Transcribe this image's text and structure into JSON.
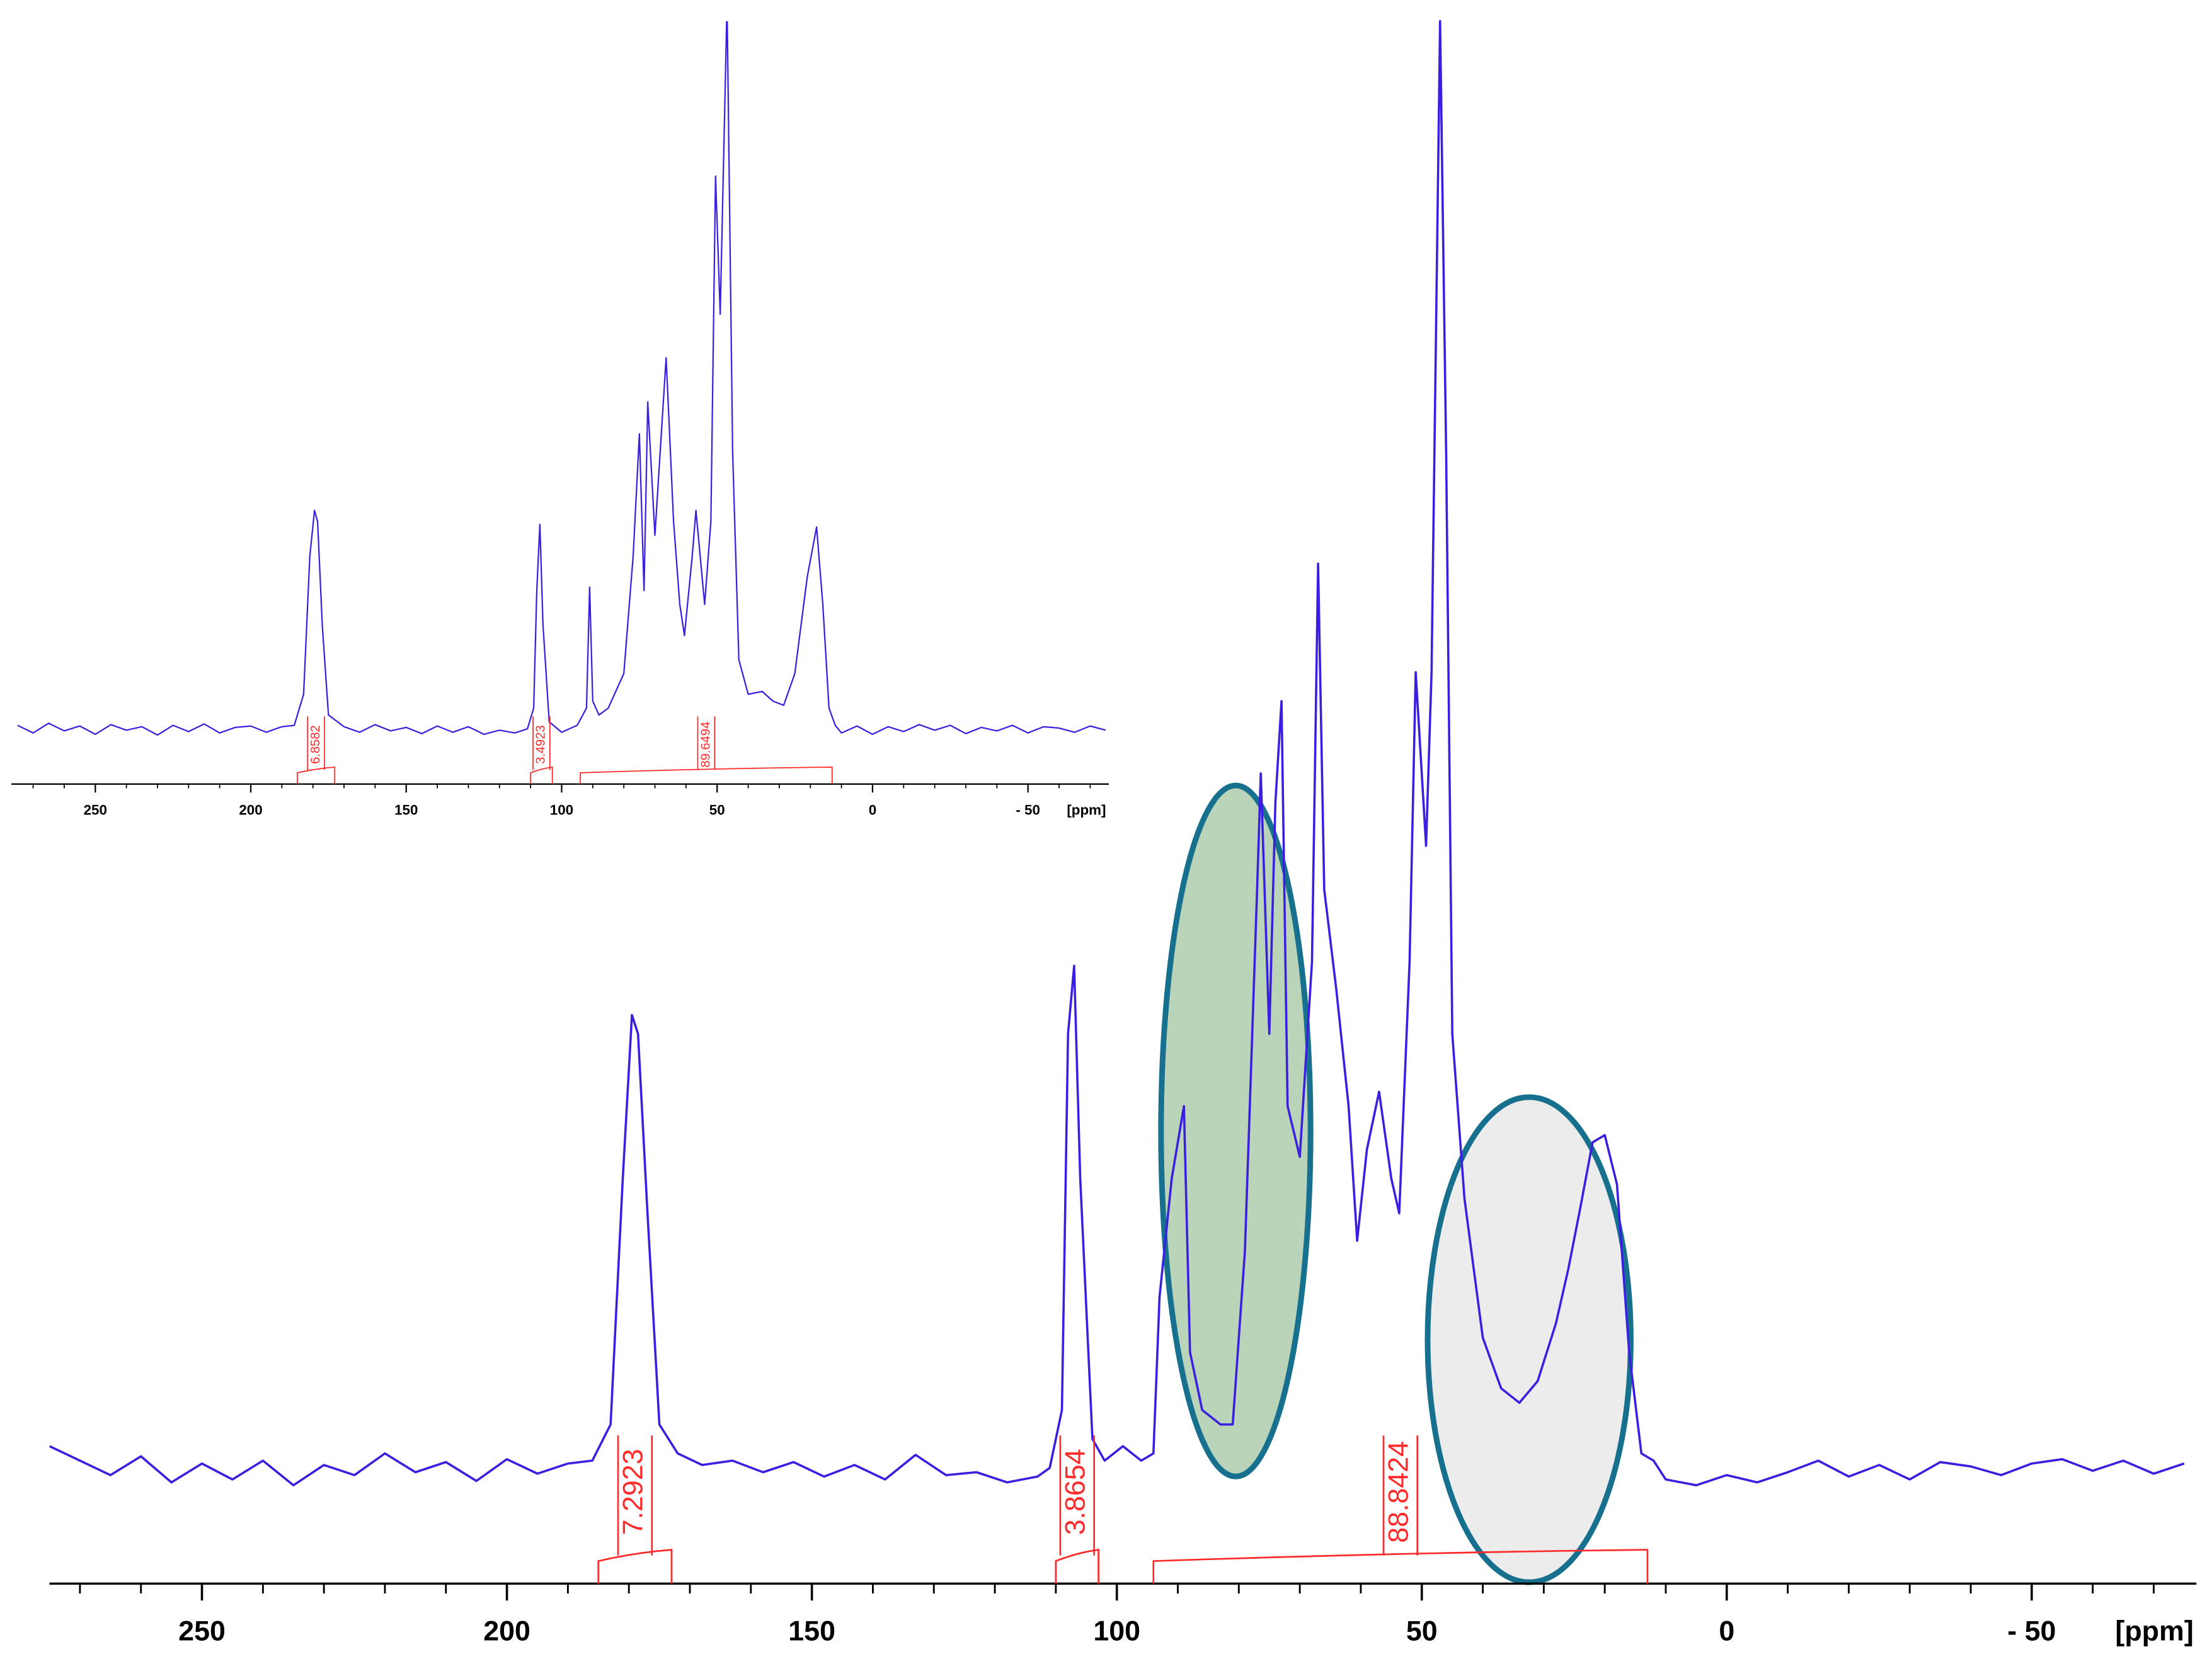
{
  "chart_data": [
    {
      "type": "line",
      "xlabel": "[ppm]",
      "xlim": [
        275,
        -77
      ],
      "ylim": [
        -8,
        100
      ],
      "xticks": [
        250,
        200,
        150,
        100,
        50,
        0,
        {
          "value": -50,
          "label": "- 50"
        }
      ],
      "xminorticks": [
        270,
        260,
        240,
        230,
        220,
        210,
        190,
        180,
        170,
        160,
        140,
        130,
        120,
        110,
        90,
        80,
        70,
        60,
        40,
        30,
        20,
        10,
        -10,
        -20,
        -30,
        -40,
        -60,
        -70
      ],
      "color": "#3a1fe0",
      "x": [
        275,
        270,
        265,
        260,
        255,
        250,
        245,
        240,
        235,
        230,
        225,
        220,
        215,
        210,
        205,
        200,
        195,
        190,
        186,
        183,
        181,
        179.5,
        178.5,
        177,
        175,
        172,
        168,
        163,
        158,
        153,
        148,
        143,
        138,
        133,
        128,
        123,
        118,
        113,
        111,
        109,
        108,
        107,
        106,
        104,
        102,
        99,
        96,
        94,
        93,
        91,
        89,
        88,
        86,
        83,
        81,
        79,
        77,
        76.4,
        75,
        74,
        73,
        72,
        70,
        68,
        67,
        66,
        64,
        62,
        60.6,
        59,
        57,
        55,
        53.7,
        52,
        51,
        49.3,
        48.4,
        47,
        46,
        45,
        43,
        40,
        37,
        34,
        31,
        28,
        26,
        24,
        22,
        20,
        18,
        16,
        14,
        12,
        10,
        5,
        0,
        -5,
        -10,
        -15,
        -20,
        -25,
        -30,
        -35,
        -40,
        -45,
        -50,
        -55,
        -60,
        -65,
        -70,
        -75
      ],
      "values": [
        1.5,
        0.5,
        -0.5,
        0.8,
        -1,
        0.3,
        -0.8,
        0.5,
        -1.2,
        0.2,
        -0.5,
        1,
        -0.3,
        0.4,
        -0.9,
        0.6,
        -0.4,
        0.3,
        0.5,
        3,
        20,
        31.3,
        30,
        18,
        3,
        1,
        0.2,
        0.5,
        -0.3,
        0.4,
        -0.6,
        0.2,
        -0.8,
        0.9,
        -0.5,
        -0.3,
        -1,
        -0.6,
        0,
        4,
        30,
        34.7,
        20,
        2,
        0.5,
        1.5,
        0.5,
        1,
        11.8,
        20,
        25,
        8,
        4,
        3,
        3,
        15,
        40,
        48,
        30,
        46,
        53,
        25,
        21.5,
        35,
        62.5,
        40,
        33,
        25,
        15.7,
        22,
        26,
        20,
        17.6,
        35,
        55,
        43,
        55,
        100,
        70,
        30,
        18.6,
        9,
        5.5,
        4.5,
        6,
        10,
        13.7,
        18,
        22.5,
        23,
        19.6,
        8,
        1,
        0.5,
        -0.8,
        -1.2,
        -0.5,
        -1,
        -0.3,
        0.5,
        -0.6,
        0.2,
        -0.8,
        0.4,
        0.1,
        -0.5,
        0.3,
        0.6,
        -0.2,
        0.5,
        -0.4,
        0.3
      ],
      "integrals": [
        {
          "from": 185,
          "to": 173,
          "value": 7.2923
        },
        {
          "from": 110,
          "to": 103,
          "value": 3.8654
        },
        {
          "from": 94,
          "to": 13,
          "value": 88.8424
        }
      ]
    },
    {
      "type": "line",
      "xlabel": "[ppm]",
      "xlim": [
        277,
        -76
      ],
      "ylim": [
        -8,
        101
      ],
      "xticks": [
        250,
        200,
        150,
        100,
        50,
        0,
        {
          "value": -50,
          "label": "- 50"
        }
      ],
      "xminorticks": [
        270,
        260,
        240,
        230,
        220,
        210,
        190,
        180,
        170,
        160,
        140,
        130,
        120,
        110,
        90,
        80,
        70,
        60,
        40,
        30,
        20,
        10,
        -10,
        -20,
        -30,
        -40,
        -60,
        -70
      ],
      "color": "#3a1fe0",
      "x": [
        275,
        270,
        265,
        260,
        255,
        250,
        245,
        240,
        235,
        230,
        225,
        220,
        215,
        210,
        205,
        200,
        195,
        190,
        186,
        183,
        181,
        179.5,
        178.5,
        177,
        175,
        170,
        165,
        160,
        155,
        150,
        145,
        140,
        135,
        130,
        125,
        120,
        115,
        111,
        109,
        108,
        107,
        106,
        104,
        100,
        95,
        92,
        91,
        90,
        88,
        85,
        80,
        77,
        75,
        73.5,
        72.3,
        70,
        66.4,
        64,
        62,
        60.5,
        58,
        56.8,
        54,
        52,
        50.5,
        49,
        46.8,
        45,
        43,
        40,
        35.5,
        32,
        28.6,
        25,
        21,
        18,
        16,
        14,
        12,
        10,
        5,
        0,
        -5,
        -10,
        -15,
        -20,
        -25,
        -30,
        -35,
        -40,
        -45,
        -50,
        -55,
        -60,
        -65,
        -70,
        -75
      ],
      "values": [
        0.5,
        -0.6,
        0.8,
        -0.3,
        0.4,
        -0.8,
        0.6,
        -0.2,
        0.3,
        -0.9,
        0.5,
        -0.4,
        0.7,
        -0.6,
        0.2,
        0.4,
        -0.5,
        0.3,
        0.5,
        5,
        25,
        31.6,
        30,
        15,
        2,
        0.3,
        -0.5,
        0.6,
        -0.3,
        0.2,
        -0.7,
        0.4,
        -0.5,
        0.3,
        -0.8,
        -0.2,
        -0.6,
        0,
        3,
        20,
        29.6,
        15,
        1,
        -0.5,
        0.5,
        3,
        20.5,
        4,
        2,
        3,
        8,
        25,
        42.7,
        20,
        47.3,
        28,
        53.7,
        30,
        18,
        13.5,
        25,
        31.6,
        18,
        30,
        80,
        60,
        105,
        40,
        10,
        5,
        5.4,
        4,
        3.4,
        8,
        22,
        29.2,
        18,
        3,
        0.5,
        -0.6,
        0.4,
        -0.8,
        0.3,
        -0.4,
        0.6,
        -0.2,
        0.5,
        -0.7,
        0.2,
        -0.3,
        0.5,
        -0.6,
        0.3,
        0.1,
        -0.5,
        0.4,
        -0.2
      ],
      "integrals": [
        {
          "from": 185,
          "to": 173,
          "value": 6.8582
        },
        {
          "from": 110,
          "to": 103,
          "value": 3.4923
        },
        {
          "from": 94,
          "to": 13,
          "value": 89.6494
        }
      ]
    }
  ]
}
